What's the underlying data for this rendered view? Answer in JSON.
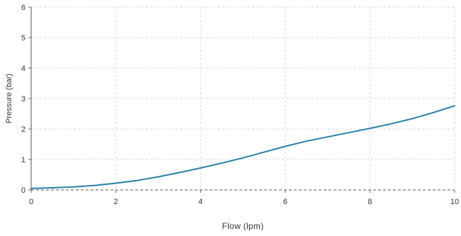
{
  "chart_data": {
    "type": "line",
    "title": "",
    "xlabel": "Flow (lpm)",
    "ylabel": "Pressure (bar)",
    "xlim": [
      0,
      10
    ],
    "ylim": [
      0,
      6
    ],
    "x_ticks": [
      0,
      2,
      4,
      6,
      8,
      10
    ],
    "y_ticks": [
      0,
      1,
      2,
      3,
      4,
      5,
      6
    ],
    "x_tick_labels": [
      "0",
      "2",
      "4",
      "6",
      "8",
      "10"
    ],
    "y_tick_labels": [
      "0",
      "1",
      "2",
      "3",
      "4",
      "5",
      "6"
    ],
    "grid": true,
    "legend": "none",
    "series": [
      {
        "color": "#2a7fa6",
        "x": [
          0,
          0.5,
          1,
          1.5,
          2,
          2.5,
          3,
          3.5,
          4,
          4.5,
          5,
          5.5,
          6,
          6.5,
          7,
          7.5,
          8,
          8.5,
          9,
          9.5,
          10
        ],
        "y": [
          0.05,
          0.07,
          0.1,
          0.15,
          0.22,
          0.31,
          0.43,
          0.57,
          0.72,
          0.88,
          1.05,
          1.24,
          1.43,
          1.6,
          1.74,
          1.88,
          2.02,
          2.17,
          2.34,
          2.54,
          2.76
        ]
      }
    ]
  }
}
